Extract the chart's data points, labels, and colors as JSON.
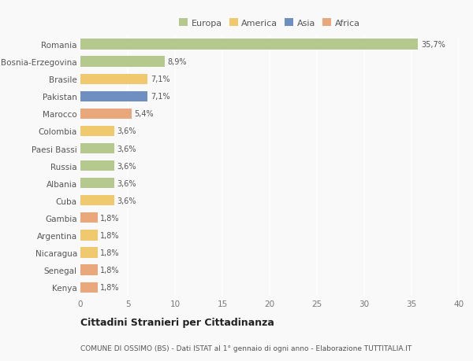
{
  "countries": [
    "Romania",
    "Bosnia-Erzegovina",
    "Brasile",
    "Pakistan",
    "Marocco",
    "Colombia",
    "Paesi Bassi",
    "Russia",
    "Albania",
    "Cuba",
    "Gambia",
    "Argentina",
    "Nicaragua",
    "Senegal",
    "Kenya"
  ],
  "values": [
    35.7,
    8.9,
    7.1,
    7.1,
    5.4,
    3.6,
    3.6,
    3.6,
    3.6,
    3.6,
    1.8,
    1.8,
    1.8,
    1.8,
    1.8
  ],
  "labels": [
    "35,7%",
    "8,9%",
    "7,1%",
    "7,1%",
    "5,4%",
    "3,6%",
    "3,6%",
    "3,6%",
    "3,6%",
    "3,6%",
    "1,8%",
    "1,8%",
    "1,8%",
    "1,8%",
    "1,8%"
  ],
  "colors": [
    "#b5c98e",
    "#b5c98e",
    "#f0c96e",
    "#6e8fbf",
    "#e8a87c",
    "#f0c96e",
    "#b5c98e",
    "#b5c98e",
    "#b5c98e",
    "#f0c96e",
    "#e8a87c",
    "#f0c96e",
    "#f0c96e",
    "#e8a87c",
    "#e8a87c"
  ],
  "continent_labels": [
    "Europa",
    "America",
    "Asia",
    "Africa"
  ],
  "continent_colors": [
    "#b5c98e",
    "#f0c96e",
    "#6e8fbf",
    "#e8a87c"
  ],
  "title": "Cittadini Stranieri per Cittadinanza",
  "subtitle": "COMUNE DI OSSIMO (BS) - Dati ISTAT al 1° gennaio di ogni anno - Elaborazione TUTTITALIA.IT",
  "xlim": [
    0,
    40
  ],
  "xticks": [
    0,
    5,
    10,
    15,
    20,
    25,
    30,
    35,
    40
  ],
  "background_color": "#f9f9f9",
  "grid_color": "#ffffff",
  "bar_height": 0.6
}
